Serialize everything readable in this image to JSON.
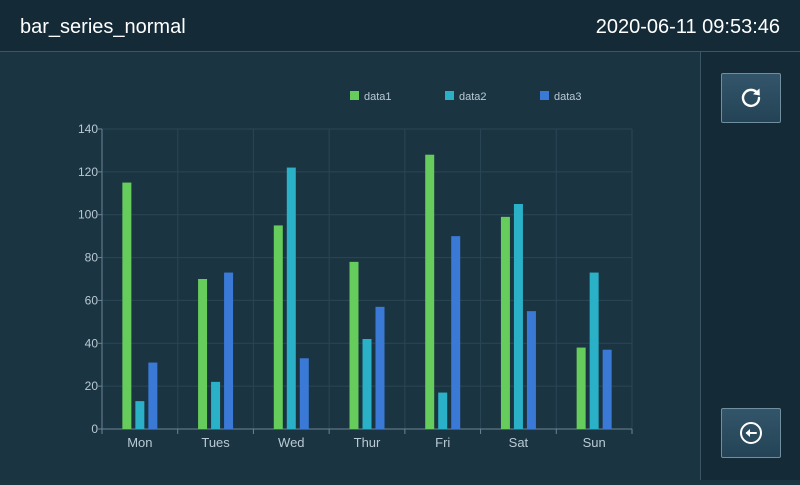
{
  "header": {
    "title": "bar_series_normal",
    "datetime": "2020-06-11 09:53:46"
  },
  "sidebar": {
    "refresh_icon": "refresh-icon",
    "back_icon": "back-arrow-circle-icon"
  },
  "chart_data": {
    "type": "bar",
    "title": "",
    "xlabel": "",
    "ylabel": "",
    "categories": [
      "Mon",
      "Tues",
      "Wed",
      "Thur",
      "Fri",
      "Sat",
      "Sun"
    ],
    "series": [
      {
        "name": "data1",
        "color": "#66cc5c",
        "values": [
          115,
          70,
          95,
          78,
          128,
          99,
          38
        ]
      },
      {
        "name": "data2",
        "color": "#2ab1c8",
        "values": [
          13,
          22,
          122,
          42,
          17,
          105,
          73
        ]
      },
      {
        "name": "data3",
        "color": "#3a7ad6",
        "values": [
          31,
          73,
          33,
          57,
          90,
          55,
          37
        ]
      }
    ],
    "ylim": [
      0,
      140
    ],
    "yticks": [
      "0",
      "20",
      "40",
      "60",
      "80",
      "100",
      "120",
      "140"
    ],
    "grid": true,
    "legend": "top-center"
  }
}
